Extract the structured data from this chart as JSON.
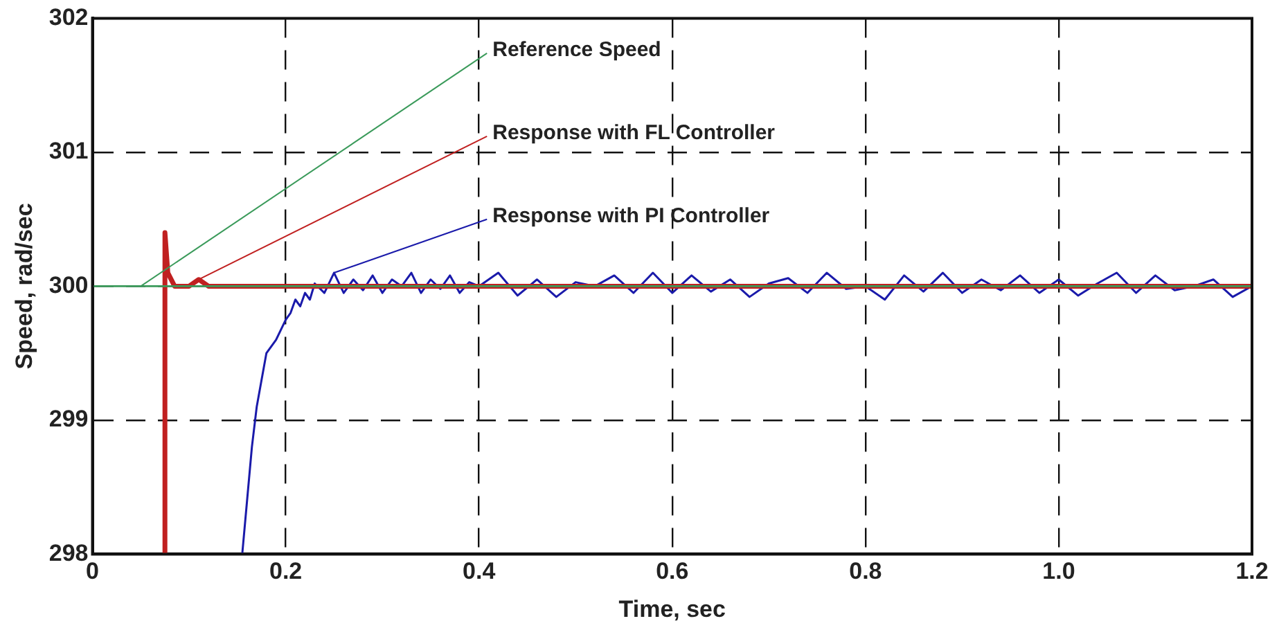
{
  "chart_data": {
    "type": "line",
    "xlabel": "Time, sec",
    "ylabel": "Speed, rad/sec",
    "xlim": [
      0,
      1.2
    ],
    "xticks": [
      {
        "value": 0,
        "label": "0"
      },
      0.2,
      0.4,
      0.6,
      0.8,
      {
        "value": 1,
        "label": "1.0"
      },
      1.2
    ],
    "ylim": [
      298,
      302
    ],
    "yticks": [
      298,
      299,
      300,
      301,
      302
    ],
    "grid": true,
    "legend": false,
    "line_style": "solid",
    "marker": "none",
    "series": [
      {
        "x": [
          0,
          1.2
        ],
        "values": [
          300,
          300
        ],
        "color": "#3a9a5a"
      },
      {
        "x": [
          0.075,
          0.075,
          0.078,
          0.085,
          0.1,
          0.11,
          0.12,
          1.2
        ],
        "values": [
          298,
          300.4,
          300.1,
          300,
          300,
          300.05,
          300,
          300
        ],
        "color": "#c02020"
      },
      {
        "x": [
          0.155,
          0.16,
          0.165,
          0.17,
          0.175,
          0.18,
          0.19,
          0.2,
          0.205,
          0.21,
          0.215,
          0.22,
          0.225,
          0.23,
          0.24,
          0.25,
          0.26,
          0.27,
          0.28,
          0.29,
          0.3,
          0.31,
          0.32,
          0.33,
          0.34,
          0.35,
          0.36,
          0.37,
          0.38,
          0.39,
          0.4,
          0.42,
          0.44,
          0.46,
          0.48,
          0.5,
          0.52,
          0.54,
          0.56,
          0.58,
          0.6,
          0.62,
          0.64,
          0.66,
          0.68,
          0.7,
          0.72,
          0.74,
          0.76,
          0.78,
          0.8,
          0.82,
          0.84,
          0.86,
          0.88,
          0.9,
          0.92,
          0.94,
          0.96,
          0.98,
          1.0,
          1.02,
          1.04,
          1.06,
          1.08,
          1.1,
          1.12,
          1.14,
          1.16,
          1.18,
          1.2
        ],
        "values": [
          298,
          298.4,
          298.8,
          299.1,
          299.3,
          299.5,
          299.6,
          299.75,
          299.8,
          299.9,
          299.85,
          299.95,
          299.9,
          300.02,
          299.95,
          300.1,
          299.95,
          300.05,
          299.97,
          300.08,
          299.95,
          300.05,
          300,
          300.1,
          299.95,
          300.05,
          299.98,
          300.08,
          299.95,
          300.03,
          300,
          300.1,
          299.93,
          300.05,
          299.92,
          300.03,
          300,
          300.08,
          299.95,
          300.1,
          299.95,
          300.08,
          299.96,
          300.05,
          299.92,
          300.02,
          300.06,
          299.95,
          300.1,
          299.98,
          300,
          299.9,
          300.08,
          299.96,
          300.1,
          299.95,
          300.05,
          299.97,
          300.08,
          299.95,
          300.05,
          299.93,
          300.02,
          300.1,
          299.95,
          300.08,
          299.97,
          300,
          300.05,
          299.92,
          300
        ],
        "color": "#1a1aaa"
      }
    ],
    "annotations": [
      {
        "text": "Reference Speed",
        "x": 0.05,
        "y": 300
      },
      {
        "text": "Response with FL Controller",
        "x": 0.11,
        "y": 300.05
      },
      {
        "text": "Response with PI Controller",
        "x": 0.25,
        "y": 300.1
      }
    ]
  }
}
